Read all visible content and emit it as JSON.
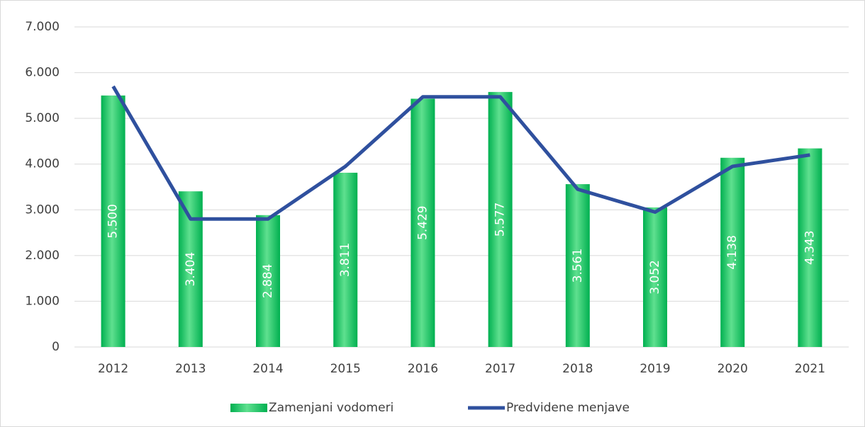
{
  "chart_data": {
    "type": "bar",
    "categories": [
      "2012",
      "2013",
      "2014",
      "2015",
      "2016",
      "2017",
      "2018",
      "2019",
      "2020",
      "2021"
    ],
    "series": [
      {
        "name": "Zamenjani vodomeri",
        "type": "bar",
        "color": "#00b050",
        "values": [
          5500,
          3404,
          2884,
          3811,
          5429,
          5577,
          3561,
          3052,
          4138,
          4343
        ],
        "value_labels": [
          "5.500",
          "3.404",
          "2.884",
          "3.811",
          "5.429",
          "5.577",
          "3.561",
          "3.052",
          "4.138",
          "4.343"
        ]
      },
      {
        "name": "Predvidene menjave",
        "type": "line",
        "color": "#2f509e",
        "values": [
          5700,
          2800,
          2800,
          3950,
          5470,
          5470,
          3450,
          2950,
          3950,
          4200
        ]
      }
    ],
    "ylim": [
      0,
      7000
    ],
    "yticks": [
      0,
      {
        "value": 1000,
        "label": "1.000"
      },
      {
        "value": 2000,
        "label": "2.000"
      },
      {
        "value": 3000,
        "label": "3.000"
      },
      {
        "value": 4000,
        "label": "4.000"
      },
      {
        "value": 5000,
        "label": "5.000"
      },
      {
        "value": 6000,
        "label": "6.000"
      },
      {
        "value": 7000,
        "label": "7.000"
      }
    ],
    "grid": true,
    "legend": "bottom"
  }
}
